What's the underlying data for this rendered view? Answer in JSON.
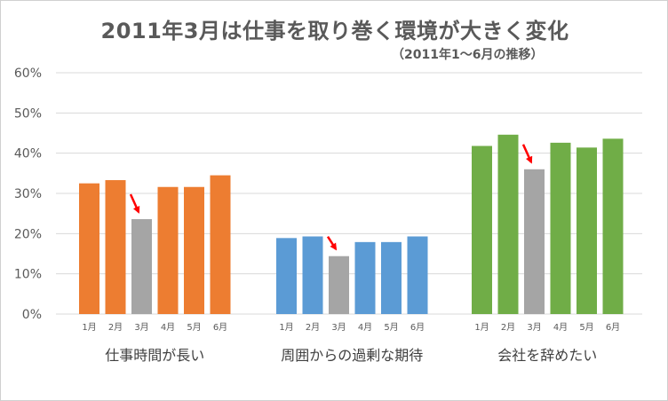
{
  "chart_data": {
    "type": "bar",
    "title": "2011年3月は仕事を取り巻く環境が大きく変化",
    "subtitle": "（2011年1～6月の推移）",
    "ylim": [
      0,
      60
    ],
    "yticks": [
      "0%",
      "10%",
      "20%",
      "30%",
      "40%",
      "50%",
      "60%"
    ],
    "grid": true,
    "highlight_category": "3月",
    "highlight_color": "#a5a5a5",
    "groups": [
      {
        "name": "仕事時間が長い",
        "color": "#ed7d31",
        "categories": [
          "1月",
          "2月",
          "3月",
          "4月",
          "5月",
          "6月"
        ],
        "values": [
          32.5,
          33.3,
          23.6,
          31.6,
          31.6,
          34.5
        ]
      },
      {
        "name": "周囲からの過剰な期待",
        "color": "#5b9bd5",
        "categories": [
          "1月",
          "2月",
          "3月",
          "4月",
          "5月",
          "6月"
        ],
        "values": [
          18.9,
          19.3,
          14.4,
          17.9,
          17.9,
          19.3
        ]
      },
      {
        "name": "会社を辞めたい",
        "color": "#70ad47",
        "categories": [
          "1月",
          "2月",
          "3月",
          "4月",
          "5月",
          "6月"
        ],
        "values": [
          41.8,
          44.6,
          36.0,
          42.6,
          41.4,
          43.6
        ]
      }
    ],
    "annotation_color": "#ff0000"
  }
}
